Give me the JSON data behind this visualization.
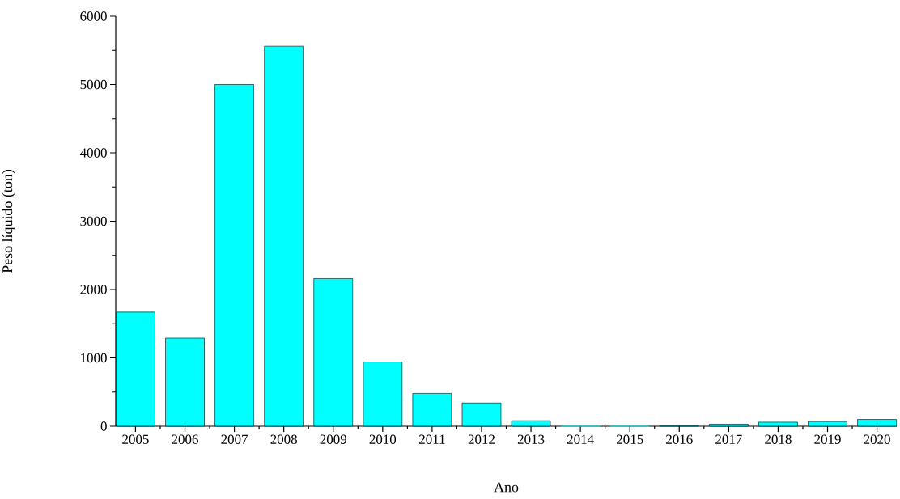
{
  "chart_data": {
    "type": "bar",
    "xlabel": "Ano",
    "ylabel": "Peso líquido (ton)",
    "categories": [
      "2005",
      "2006",
      "2007",
      "2008",
      "2009",
      "2010",
      "2011",
      "2012",
      "2013",
      "2014",
      "2015",
      "2016",
      "2017",
      "2018",
      "2019",
      "2020"
    ],
    "values": [
      1670,
      1290,
      5000,
      5560,
      2160,
      940,
      480,
      340,
      80,
      0,
      0,
      10,
      30,
      60,
      70,
      100
    ],
    "color": "#00ffff",
    "ylim": [
      0,
      6000
    ],
    "yticks": [
      0,
      1000,
      2000,
      3000,
      4000,
      5000,
      6000
    ],
    "grid": false
  }
}
